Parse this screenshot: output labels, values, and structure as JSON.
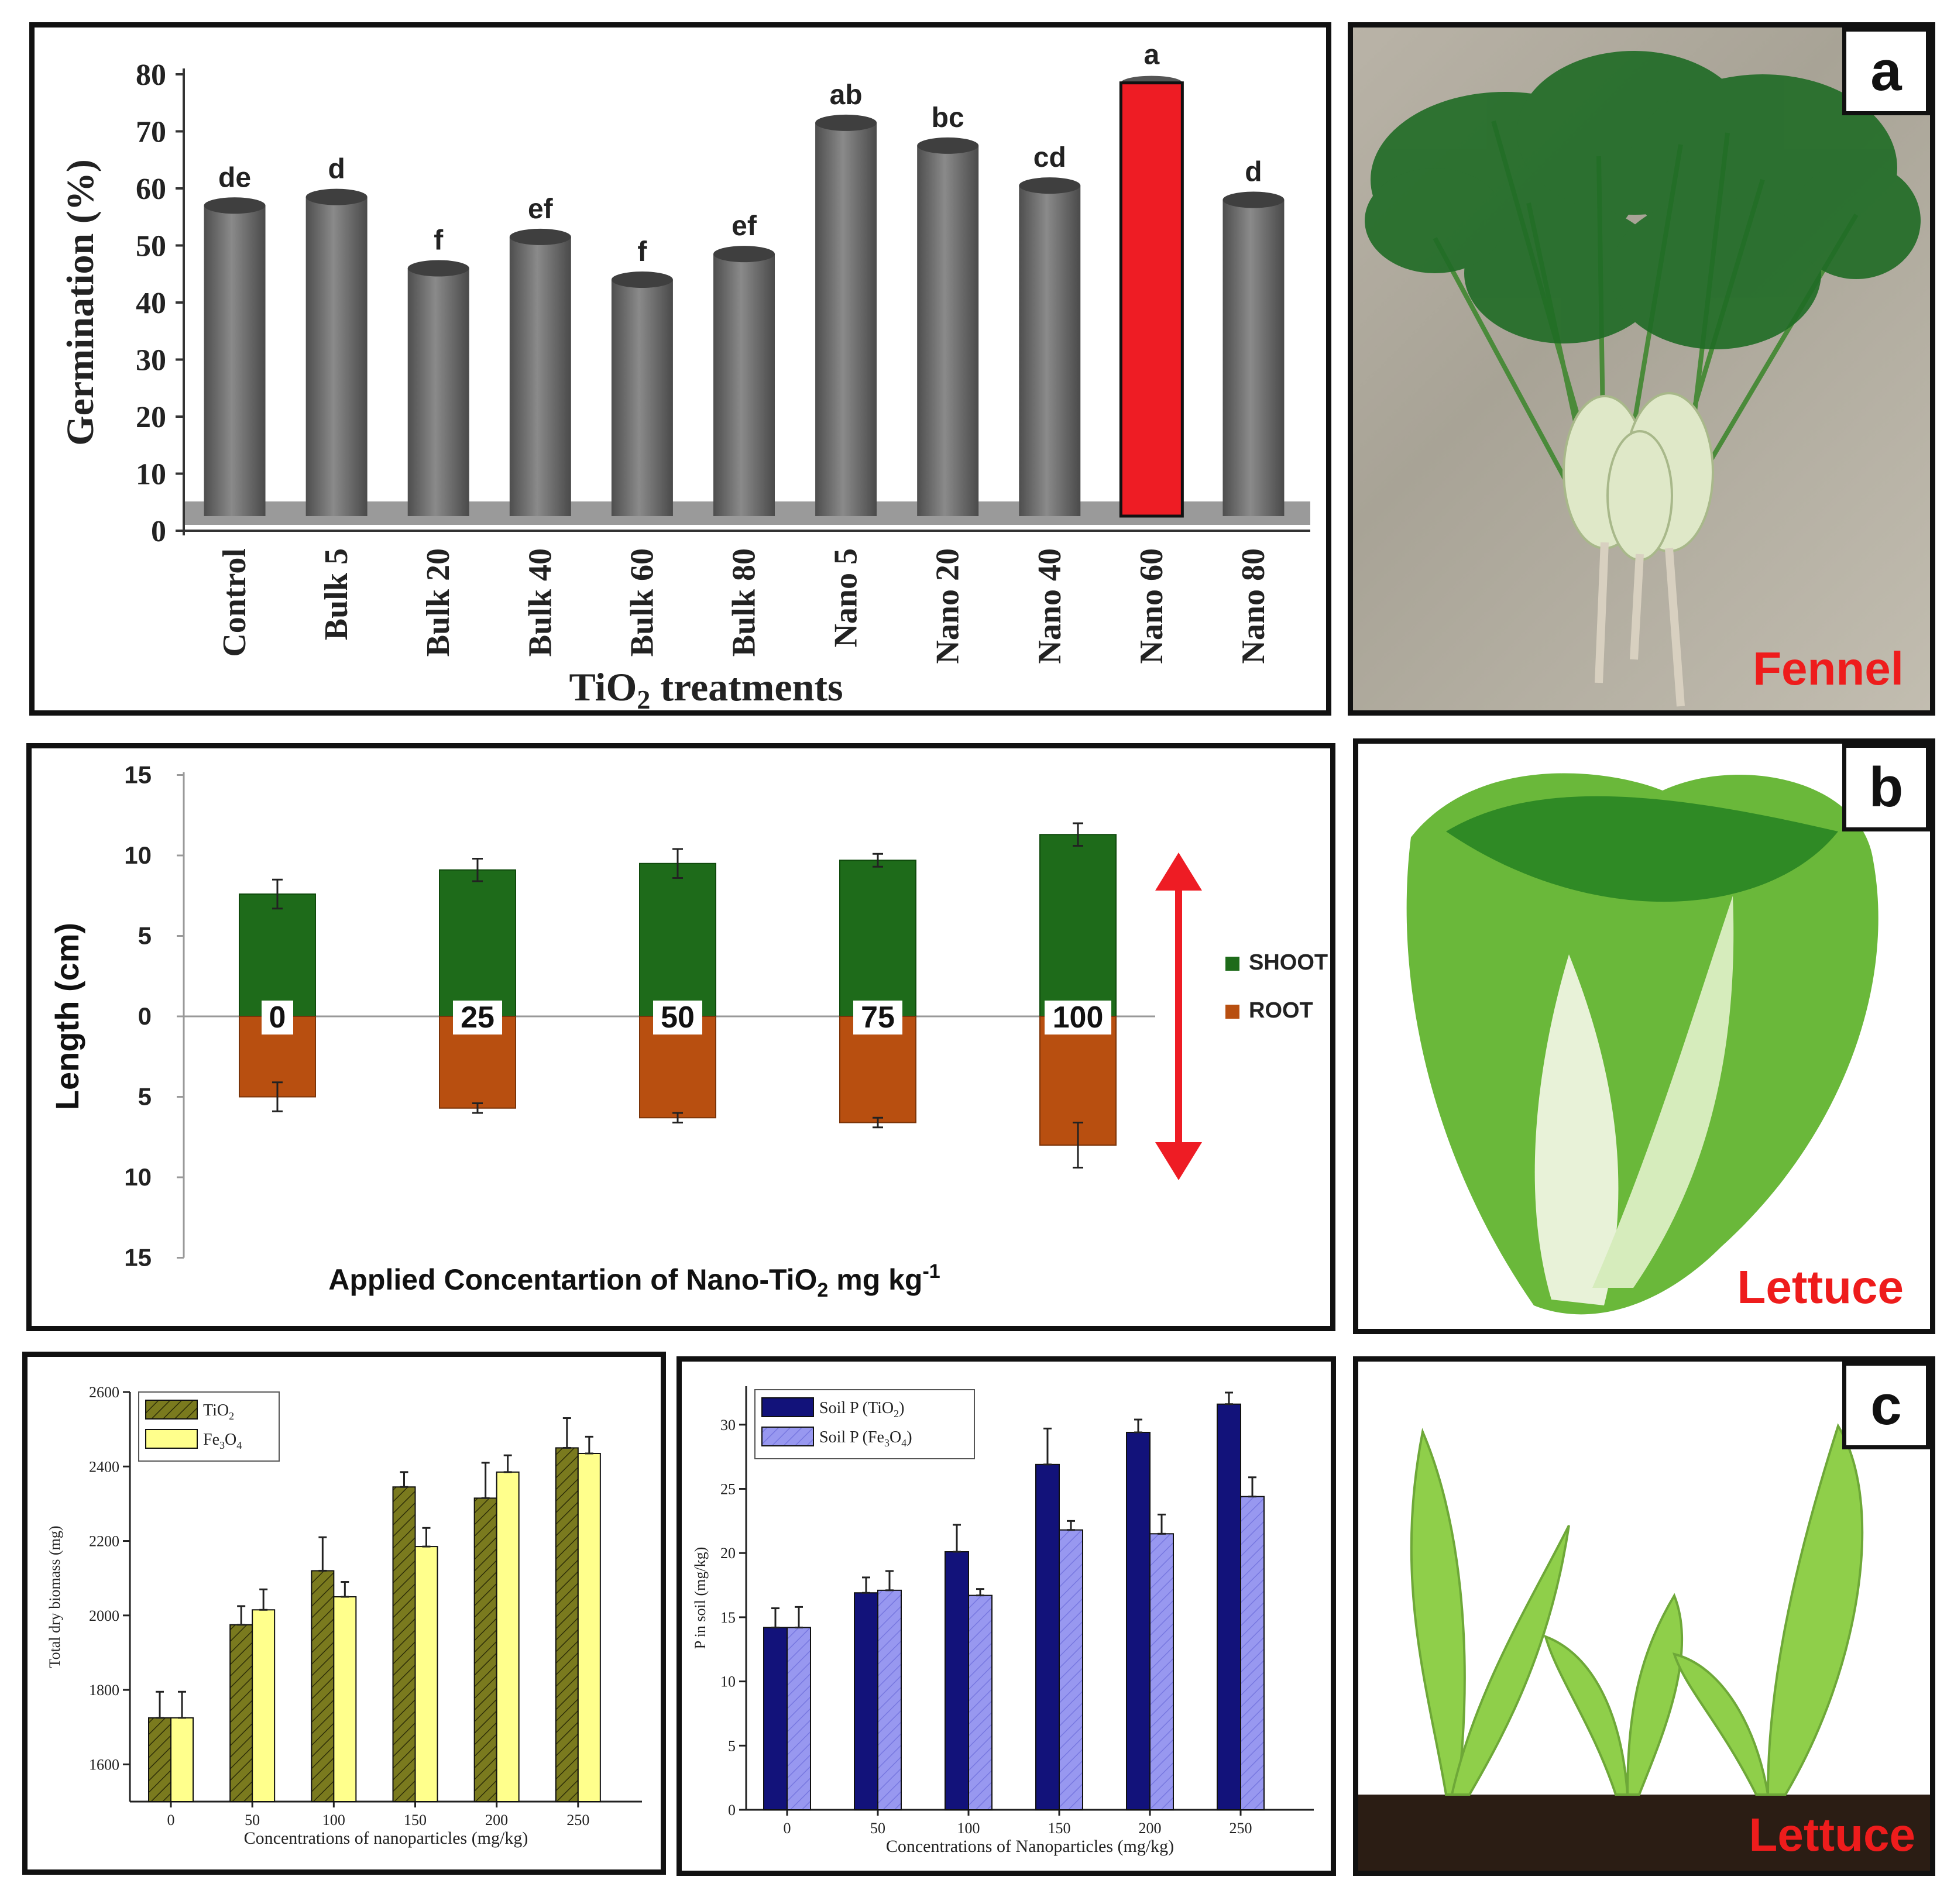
{
  "chart_data": [
    {
      "type": "bar",
      "ylabel": "Germination (%)",
      "xlabel_main": "TiO",
      "xlabel_sub": "2",
      "xlabel_rest": " treatments",
      "ylim": [
        0,
        80
      ],
      "yticks": [
        "0",
        "10",
        "20",
        "30",
        "40",
        "50",
        "60",
        "70",
        "80"
      ],
      "categories": [
        "Control",
        "Bulk 5",
        "Bulk 20",
        "Bulk 40",
        "Bulk 60",
        "Bulk 80",
        "Nano 5",
        "Nano 20",
        "Nano 40",
        "Nano 60",
        "Nano 80"
      ],
      "values": [
        57,
        58.5,
        46,
        51.5,
        44,
        48.5,
        71.5,
        67.5,
        60.5,
        78.5,
        58
      ],
      "letters": [
        "de",
        "d",
        "f",
        "ef",
        "f",
        "ef",
        "ab",
        "bc",
        "cd",
        "a",
        "d"
      ],
      "highlight_index": 9,
      "colors": {
        "bar": "#6b6b6b",
        "highlight": "#ee1c24"
      }
    },
    {
      "type": "bar",
      "ylabel": "Length (cm)",
      "xlabel_main": "Applied Concentartion of Nano-TiO",
      "xlabel_sub": "2",
      "xlabel_rest": " mg kg",
      "xlabel_sup": "-1",
      "yticks_up": [
        "15",
        "10",
        "5",
        "0"
      ],
      "yticks_down": [
        "5",
        "10",
        "15"
      ],
      "categories": [
        "0",
        "25",
        "50",
        "75",
        "100"
      ],
      "series": [
        {
          "name": "SHOOT",
          "values": [
            7.6,
            9.1,
            9.5,
            9.7,
            11.3
          ],
          "errors": [
            0.9,
            0.7,
            0.9,
            0.4,
            0.7
          ],
          "color": "#1e6b1a"
        },
        {
          "name": "ROOT",
          "values": [
            5.0,
            5.7,
            6.3,
            6.6,
            8.0
          ],
          "errors": [
            0.9,
            0.3,
            0.3,
            0.3,
            1.4
          ],
          "color": "#b84f10"
        }
      ],
      "arrow_color": "#ee1c24"
    },
    {
      "type": "bar",
      "ylabel": "Total dry biomass (mg)",
      "xlabel": "Concentrations of nanoparticles (mg/kg)",
      "ylim": [
        1500,
        2600
      ],
      "yticks": [
        "1600",
        "1800",
        "2000",
        "2200",
        "2400",
        "2600"
      ],
      "categories": [
        "0",
        "50",
        "100",
        "150",
        "200",
        "250"
      ],
      "series": [
        {
          "name": "TiO",
          "sub": "2",
          "values": [
            1725,
            1975,
            2120,
            2345,
            2315,
            2450
          ],
          "errors": [
            70,
            50,
            90,
            40,
            95,
            80
          ],
          "color": "#7a7a1e"
        },
        {
          "name": "Fe",
          "sub": "3",
          "name2": "O",
          "sub2": "4",
          "values": [
            1725,
            2015,
            2050,
            2185,
            2385,
            2435
          ],
          "errors": [
            70,
            55,
            40,
            50,
            45,
            45
          ],
          "color": "#ffff8c"
        }
      ]
    },
    {
      "type": "bar",
      "ylabel": "P in soil (mg/kg)",
      "xlabel": "Concentrations of Nanoparticles (mg/kg)",
      "ylim": [
        0,
        33
      ],
      "yticks": [
        "0",
        "5",
        "10",
        "15",
        "20",
        "25",
        "30"
      ],
      "categories": [
        "0",
        "50",
        "100",
        "150",
        "200",
        "250"
      ],
      "series": [
        {
          "name": "Soil P (TiO",
          "sub": "2",
          "tail": ")",
          "values": [
            14.2,
            16.9,
            20.1,
            26.9,
            29.4,
            31.6
          ],
          "errors": [
            1.5,
            1.2,
            2.1,
            2.8,
            1.0,
            0.9
          ],
          "color": "#12127a"
        },
        {
          "name": "Soil P (Fe",
          "sub": "3",
          "name2": "O",
          "sub2": "4",
          "tail": ")",
          "values": [
            14.2,
            17.1,
            16.7,
            21.8,
            21.5,
            24.4
          ],
          "errors": [
            1.6,
            1.5,
            0.5,
            0.7,
            1.5,
            1.5
          ],
          "color": "#9898f0"
        }
      ]
    }
  ],
  "photos": [
    {
      "letter": "a",
      "label": "Fennel"
    },
    {
      "letter": "b",
      "label": "Lettuce"
    },
    {
      "letter": "c",
      "label": "Lettuce"
    }
  ]
}
